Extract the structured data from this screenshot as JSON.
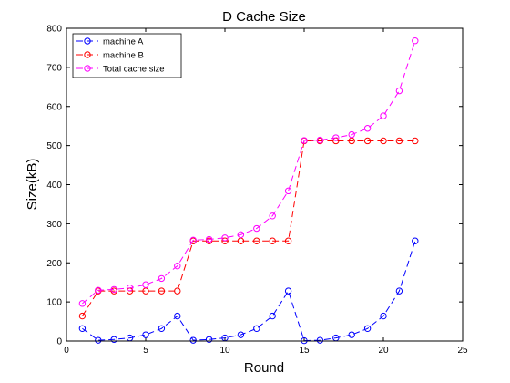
{
  "chart_data": {
    "type": "line",
    "title": "D Cache Size",
    "xlabel": "Round",
    "ylabel": "Size(kB)",
    "xlim": [
      0,
      25
    ],
    "ylim": [
      0,
      800
    ],
    "xticks": [
      0,
      5,
      10,
      15,
      20,
      25
    ],
    "yticks": [
      0,
      100,
      200,
      300,
      400,
      500,
      600,
      700,
      800
    ],
    "grid": false,
    "legend_position": "top-left",
    "x": [
      1,
      2,
      3,
      4,
      5,
      6,
      7,
      8,
      9,
      10,
      11,
      12,
      13,
      14,
      15,
      16,
      17,
      18,
      19,
      20,
      21,
      22
    ],
    "series": [
      {
        "name": "machine A",
        "color": "#0000ff",
        "values": [
          32,
          2,
          4,
          8,
          16,
          32,
          64,
          2,
          4,
          8,
          16,
          32,
          64,
          128,
          1,
          2,
          8,
          16,
          32,
          64,
          128,
          256
        ]
      },
      {
        "name": "machine B",
        "color": "#ff0000",
        "values": [
          64,
          128,
          128,
          128,
          128,
          128,
          128,
          256,
          256,
          256,
          256,
          256,
          256,
          256,
          512,
          512,
          512,
          512,
          512,
          512,
          512,
          512
        ]
      },
      {
        "name": "Total cache size",
        "color": "#ff00ff",
        "values": [
          96,
          130,
          132,
          136,
          144,
          160,
          192,
          258,
          260,
          264,
          272,
          288,
          320,
          384,
          513,
          514,
          520,
          528,
          544,
          576,
          640,
          768
        ]
      }
    ]
  }
}
